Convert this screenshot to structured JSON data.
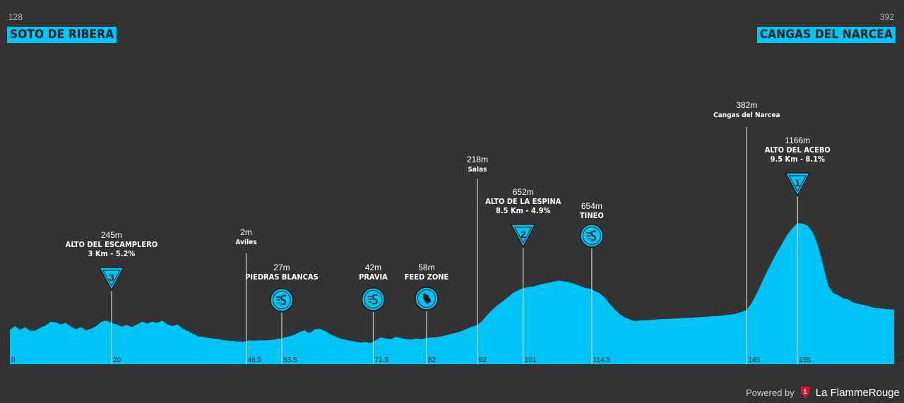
{
  "header": {
    "start_elevation": "128",
    "start_town": "SOTO DE RIBERA",
    "end_elevation": "392",
    "end_town": "CANGAS DEL NARCEA"
  },
  "footer": {
    "powered_by": "Powered by",
    "brand": "La FlammeRouge",
    "brand_mark": "1"
  },
  "chart_data": {
    "type": "area",
    "xlim": [
      0,
      174
    ],
    "colors": {
      "background": "#333333",
      "profile": "#00c4f5",
      "marker_line": "#cfcfcf",
      "text": "#ffffff"
    },
    "profile": [
      [
        0,
        180
      ],
      [
        1,
        215
      ],
      [
        2,
        180
      ],
      [
        3,
        205
      ],
      [
        4,
        170
      ],
      [
        5,
        175
      ],
      [
        6,
        200
      ],
      [
        7,
        220
      ],
      [
        8,
        255
      ],
      [
        9,
        250
      ],
      [
        10,
        230
      ],
      [
        11,
        245
      ],
      [
        12,
        210
      ],
      [
        13,
        185
      ],
      [
        14,
        205
      ],
      [
        15,
        175
      ],
      [
        16,
        190
      ],
      [
        17,
        215
      ],
      [
        18,
        255
      ],
      [
        19,
        265
      ],
      [
        20,
        245
      ],
      [
        21,
        230
      ],
      [
        22,
        210
      ],
      [
        23,
        225
      ],
      [
        24,
        205
      ],
      [
        25,
        230
      ],
      [
        26,
        255
      ],
      [
        27,
        240
      ],
      [
        28,
        255
      ],
      [
        29,
        245
      ],
      [
        30,
        265
      ],
      [
        31,
        230
      ],
      [
        32,
        215
      ],
      [
        33,
        230
      ],
      [
        34,
        190
      ],
      [
        35,
        170
      ],
      [
        36,
        145
      ],
      [
        37,
        120
      ],
      [
        38,
        115
      ],
      [
        39,
        105
      ],
      [
        40,
        100
      ],
      [
        41,
        95
      ],
      [
        42,
        85
      ],
      [
        43,
        80
      ],
      [
        44,
        78
      ],
      [
        45,
        72
      ],
      [
        46,
        70
      ],
      [
        46.5,
        75
      ],
      [
        47,
        82
      ],
      [
        48,
        80
      ],
      [
        49,
        83
      ],
      [
        50,
        82
      ],
      [
        51,
        85
      ],
      [
        52,
        90
      ],
      [
        53,
        100
      ],
      [
        53.5,
        98
      ],
      [
        54,
        110
      ],
      [
        55,
        120
      ],
      [
        56,
        135
      ],
      [
        57,
        160
      ],
      [
        58,
        175
      ],
      [
        59,
        150
      ],
      [
        60,
        185
      ],
      [
        61,
        190
      ],
      [
        62,
        170
      ],
      [
        63,
        140
      ],
      [
        64,
        120
      ],
      [
        65,
        100
      ],
      [
        66,
        90
      ],
      [
        67,
        80
      ],
      [
        68,
        70
      ],
      [
        69,
        62
      ],
      [
        70,
        68
      ],
      [
        71,
        58
      ],
      [
        71.5,
        70
      ],
      [
        72,
        85
      ],
      [
        73,
        110
      ],
      [
        74,
        100
      ],
      [
        75,
        95
      ],
      [
        76,
        115
      ],
      [
        77,
        102
      ],
      [
        78,
        95
      ],
      [
        79,
        90
      ],
      [
        80,
        100
      ],
      [
        81,
        95
      ],
      [
        82,
        105
      ],
      [
        83,
        108
      ],
      [
        84,
        112
      ],
      [
        85,
        120
      ],
      [
        86,
        130
      ],
      [
        87,
        145
      ],
      [
        88,
        155
      ],
      [
        89,
        170
      ],
      [
        90,
        190
      ],
      [
        91,
        210
      ],
      [
        92,
        225
      ],
      [
        93,
        265
      ],
      [
        94,
        320
      ],
      [
        95,
        370
      ],
      [
        96,
        410
      ],
      [
        97,
        445
      ],
      [
        98,
        480
      ],
      [
        99,
        520
      ],
      [
        100,
        545
      ],
      [
        101,
        565
      ],
      [
        102,
        575
      ],
      [
        103,
        580
      ],
      [
        104,
        595
      ],
      [
        105,
        605
      ],
      [
        106,
        615
      ],
      [
        107,
        625
      ],
      [
        108,
        635
      ],
      [
        109,
        628
      ],
      [
        110,
        620
      ],
      [
        111,
        605
      ],
      [
        112,
        590
      ],
      [
        113,
        570
      ],
      [
        114,
        560
      ],
      [
        114.5,
        555
      ],
      [
        115,
        540
      ],
      [
        116,
        520
      ],
      [
        117,
        480
      ],
      [
        118,
        420
      ],
      [
        119,
        370
      ],
      [
        120,
        325
      ],
      [
        121,
        295
      ],
      [
        122,
        275
      ],
      [
        123,
        260
      ],
      [
        124,
        268
      ],
      [
        125,
        270
      ],
      [
        126,
        272
      ],
      [
        127,
        275
      ],
      [
        128,
        278
      ],
      [
        129,
        280
      ],
      [
        130,
        283
      ],
      [
        131,
        285
      ],
      [
        132,
        288
      ],
      [
        133,
        290
      ],
      [
        134,
        292
      ],
      [
        135,
        295
      ],
      [
        136,
        298
      ],
      [
        137,
        300
      ],
      [
        138,
        305
      ],
      [
        139,
        307
      ],
      [
        140,
        310
      ],
      [
        141,
        318
      ],
      [
        142,
        322
      ],
      [
        143,
        330
      ],
      [
        144,
        345
      ],
      [
        145,
        365
      ],
      [
        146,
        430
      ],
      [
        147,
        520
      ],
      [
        148,
        620
      ],
      [
        149,
        720
      ],
      [
        150,
        810
      ],
      [
        151,
        900
      ],
      [
        152,
        980
      ],
      [
        153,
        1060
      ],
      [
        154,
        1120
      ],
      [
        155,
        1166
      ],
      [
        156,
        1160
      ],
      [
        157,
        1140
      ],
      [
        158,
        1080
      ],
      [
        159,
        960
      ],
      [
        160,
        780
      ],
      [
        161,
        590
      ],
      [
        162,
        520
      ],
      [
        163,
        500
      ],
      [
        164,
        470
      ],
      [
        165,
        460
      ],
      [
        166,
        430
      ],
      [
        167,
        420
      ],
      [
        168,
        410
      ],
      [
        169,
        400
      ],
      [
        170,
        385
      ],
      [
        171,
        380
      ],
      [
        172,
        375
      ],
      [
        173,
        370
      ],
      [
        174,
        368
      ]
    ],
    "axis_ticks": [
      "0",
      "20",
      "46.5",
      "53.5",
      "71.5",
      "82",
      "92",
      "101",
      "114.5",
      "145",
      "155",
      "174"
    ],
    "markers": [
      {
        "km": 20,
        "type": "climb",
        "category": "3",
        "elevation": "245m",
        "name": "ALTO DEL ESCAMPLERO",
        "detail": "3 Km - 5.2%"
      },
      {
        "km": 46.5,
        "type": "town",
        "elevation": "2m",
        "name": "Aviles"
      },
      {
        "km": 53.5,
        "type": "sprint",
        "elevation": "27m",
        "name": "PIEDRAS BLANCAS"
      },
      {
        "km": 71.5,
        "type": "sprint",
        "elevation": "42m",
        "name": "PRAVIA"
      },
      {
        "km": 82,
        "type": "feed",
        "elevation": "58m",
        "name": "FEED ZONE"
      },
      {
        "km": 92,
        "type": "town",
        "elevation": "218m",
        "name": "Salas"
      },
      {
        "km": 101,
        "type": "climb",
        "category": "2",
        "elevation": "652m",
        "name": "ALTO DE LA ESPINA",
        "detail": "8.5 Km - 4.9%"
      },
      {
        "km": 114.5,
        "type": "sprint",
        "elevation": "654m",
        "name": "TINEO"
      },
      {
        "km": 145,
        "type": "town",
        "elevation": "382m",
        "name": "Cangas del Narcea"
      },
      {
        "km": 155,
        "type": "climb",
        "category": "1",
        "elevation": "1166m",
        "name": "ALTO DEL ACEBO",
        "detail": "9.5 Km - 8.1%"
      }
    ]
  }
}
